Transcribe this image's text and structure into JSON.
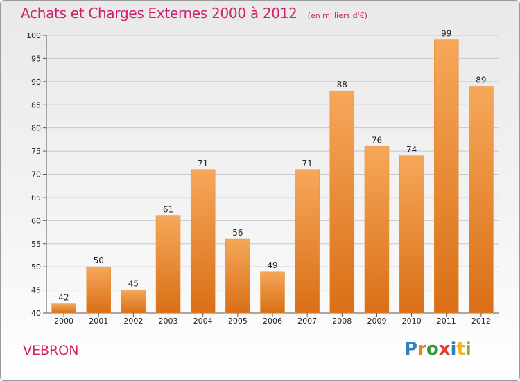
{
  "header": {
    "title": "Achats et Charges Externes 2000 à 2012",
    "subtitle": "(en milliers d'€)"
  },
  "place_name": "VEBRON",
  "logo": {
    "text": "Proxiti",
    "letter_colors": [
      "#2f7fc1",
      "#e8831c",
      "#2f9a3c",
      "#e23a2c",
      "#2f7fc1",
      "#f2b21b",
      "#7cb342"
    ]
  },
  "colors": {
    "bar_light": "#f6a75a",
    "bar_dark": "#d96f16",
    "grid": "#c8c8c8",
    "accent": "#d0206a"
  },
  "chart_data": {
    "type": "bar",
    "title": "Achats et Charges Externes 2000 à 2012",
    "subtitle": "(en milliers d'€)",
    "categories": [
      "2000",
      "2001",
      "2002",
      "2003",
      "2004",
      "2005",
      "2006",
      "2007",
      "2008",
      "2009",
      "2010",
      "2011",
      "2012"
    ],
    "values": [
      42,
      50,
      45,
      61,
      71,
      56,
      49,
      71,
      88,
      76,
      74,
      99,
      89
    ],
    "ylim": [
      40,
      100
    ],
    "yticks": [
      40,
      45,
      50,
      55,
      60,
      65,
      70,
      75,
      80,
      85,
      90,
      95,
      100
    ],
    "grid": true,
    "xlabel": "",
    "ylabel": ""
  }
}
